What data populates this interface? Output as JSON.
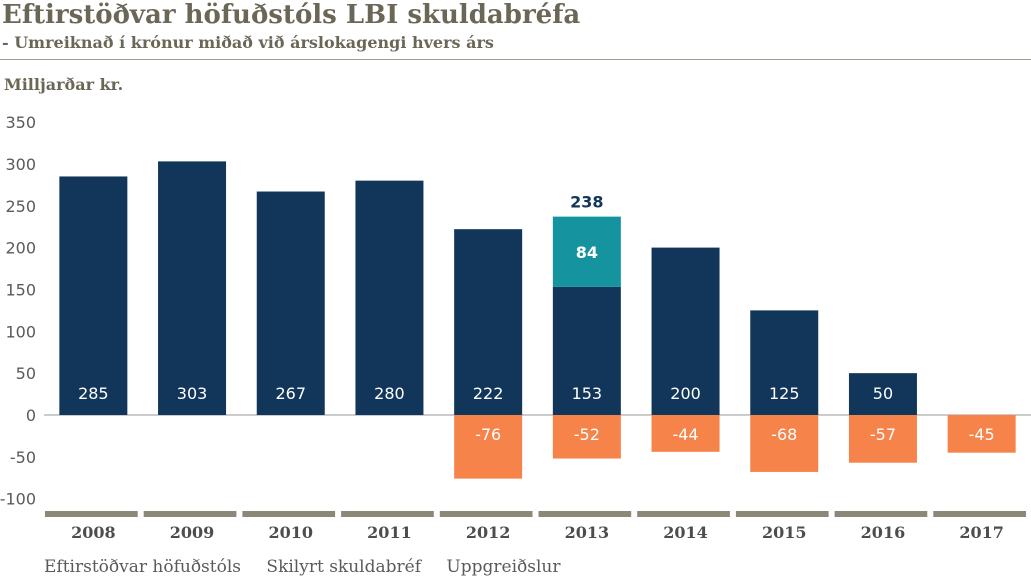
{
  "chart_data": {
    "type": "bar",
    "title": "Eftirstöðvar höfuðstóls LBI skuldabréfa",
    "subtitle": "- Umreiknað í krónur miðað við árslokagengi hvers árs",
    "ylabel": "Milljarðar kr.",
    "xlabel": "",
    "ylim": [
      -100,
      350
    ],
    "yticks": [
      350,
      300,
      250,
      200,
      150,
      100,
      50,
      0,
      -50,
      -100
    ],
    "categories": [
      "2008",
      "2009",
      "2010",
      "2011",
      "2012",
      "2013",
      "2014",
      "2015",
      "2016",
      "2017"
    ],
    "series": [
      {
        "name": "Eftirstöðvar höfuðstóls",
        "color": "#12365a",
        "values": [
          285,
          303,
          267,
          280,
          222,
          153,
          200,
          125,
          50,
          null
        ]
      },
      {
        "name": "Skilyrt skuldabréf",
        "color": "#15939e",
        "values": [
          null,
          null,
          null,
          null,
          null,
          84,
          null,
          null,
          null,
          null
        ]
      },
      {
        "name": "Uppgreiðslur",
        "color": "#f5834a",
        "values": [
          null,
          null,
          null,
          null,
          -76,
          -52,
          -44,
          -68,
          -57,
          -45
        ]
      }
    ],
    "annotations": [
      {
        "category": "2013",
        "text": "238"
      }
    ],
    "legend": [
      "Eftirstöðvar höfuðstóls",
      "Skilyrt skuldabréf",
      "Uppgreiðslur"
    ],
    "legend_position": "bottom"
  }
}
